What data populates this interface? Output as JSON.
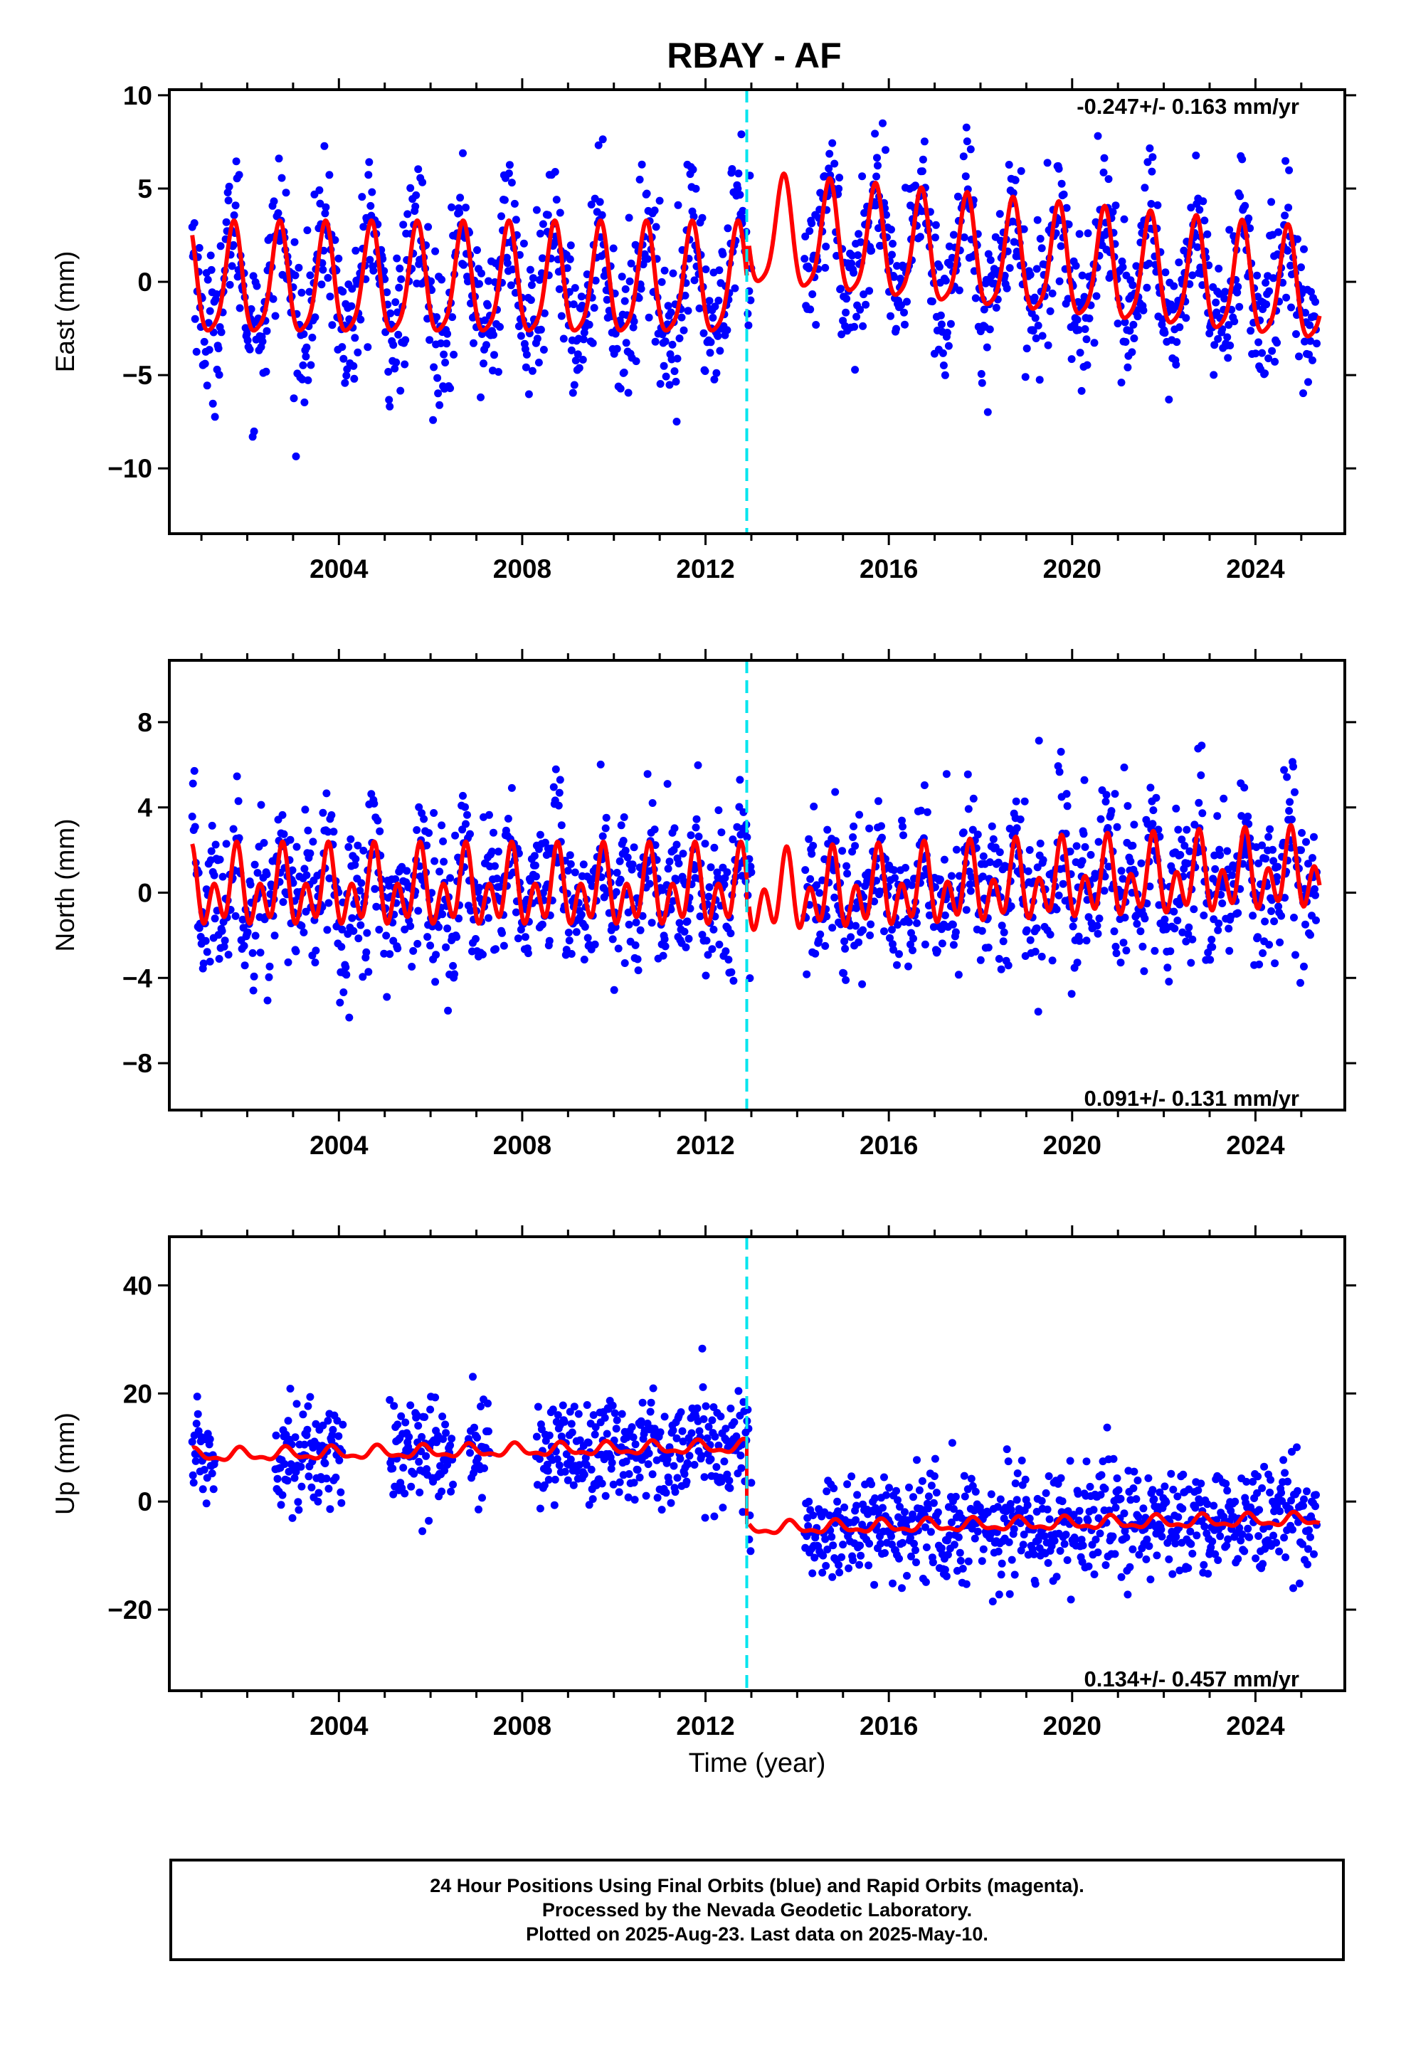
{
  "title": "RBAY - AF",
  "xlabel": "Time (year)",
  "colors": {
    "final_orbits": "#0000ff",
    "model": "#ff0000",
    "event_line": "#00e5ee"
  },
  "caption": {
    "line1": "24 Hour Positions Using Final Orbits (blue) and Rapid Orbits (magenta).",
    "line2": "Processed by the Nevada Geodetic Laboratory.",
    "line3": "Plotted on 2025-Aug-23. Last data on 2025-May-10."
  },
  "chart_data": [
    {
      "type": "scatter",
      "component": "east",
      "ylabel": "East (mm)",
      "rate_label": "-0.247+/- 0.163 mm/yr",
      "rate_position": "top-right",
      "xlim": [
        2000.3,
        2025.95
      ],
      "ylim": [
        -13.5,
        10.3
      ],
      "xticks": [
        2004,
        2008,
        2012,
        2016,
        2020,
        2024
      ],
      "yticks": [
        -10,
        -5,
        0,
        5,
        10
      ],
      "event_line_x": 2012.9,
      "data_span": [
        2000.8,
        2025.35
      ],
      "gaps": [
        [
          2013.0,
          2014.15
        ]
      ],
      "segments": [
        {
          "start": 2000.8,
          "end": 2012.9,
          "offset": -0.2,
          "trend": 0.0
        },
        {
          "start": 2012.95,
          "end": 2025.4,
          "offset": 2.5,
          "trend": -0.247
        }
      ],
      "seasonal": {
        "annual_amp": 2.9,
        "annual_phase": 0.45,
        "semiannual_amp": 0.6,
        "semiannual_phase": 0.1
      },
      "scatter_sd": 2.0,
      "series": [
        {
          "name": "Final Orbits",
          "kind": "points"
        },
        {
          "name": "Model",
          "kind": "line"
        }
      ]
    },
    {
      "type": "scatter",
      "component": "north",
      "ylabel": "North (mm)",
      "rate_label": "0.091+/- 0.131 mm/yr",
      "rate_position": "bottom-right",
      "xlim": [
        2000.3,
        2025.95
      ],
      "ylim": [
        -10.2,
        10.9
      ],
      "xticks": [
        2004,
        2008,
        2012,
        2016,
        2020,
        2024
      ],
      "yticks": [
        -8,
        -4,
        0,
        4,
        8
      ],
      "event_line_x": 2012.9,
      "data_span": [
        2000.8,
        2025.35
      ],
      "gaps": [
        [
          2013.0,
          2014.15
        ]
      ],
      "segments": [
        {
          "start": 2000.8,
          "end": 2012.9,
          "offset": 0.1,
          "trend": 0.0
        },
        {
          "start": 2012.95,
          "end": 2025.4,
          "offset": -0.2,
          "trend": 0.091
        }
      ],
      "seasonal": {
        "annual_amp": 1.0,
        "annual_phase": 0.5,
        "semiannual_amp": 1.3,
        "semiannual_phase": 0.15
      },
      "scatter_sd": 1.7,
      "series": [
        {
          "name": "Final Orbits",
          "kind": "points"
        },
        {
          "name": "Model",
          "kind": "line"
        }
      ]
    },
    {
      "type": "scatter",
      "component": "up",
      "ylabel": "Up (mm)",
      "rate_label": "0.134+/- 0.457 mm/yr",
      "rate_position": "bottom-right",
      "xlim": [
        2000.3,
        2025.95
      ],
      "ylim": [
        -35,
        49
      ],
      "xticks": [
        2004,
        2008,
        2012,
        2016,
        2020,
        2024
      ],
      "yticks": [
        -20,
        0,
        20,
        40
      ],
      "event_line_x": 2012.9,
      "data_span": [
        2000.8,
        2025.35
      ],
      "gaps": [
        [
          2001.3,
          2002.6
        ],
        [
          2004.1,
          2005.1
        ],
        [
          2006.5,
          2006.8
        ],
        [
          2007.3,
          2008.3
        ],
        [
          2013.0,
          2014.15
        ]
      ],
      "segments": [
        {
          "start": 2000.8,
          "end": 2012.9,
          "offset": 8.5,
          "trend": 0.134
        },
        {
          "start": 2012.95,
          "end": 2025.4,
          "offset": -5.0,
          "trend": 0.134
        }
      ],
      "seasonal": {
        "annual_amp": 1.0,
        "annual_phase": 0.6,
        "semiannual_amp": 0.5,
        "semiannual_phase": 0.2
      },
      "scatter_sd": 5.0,
      "series": [
        {
          "name": "Final Orbits",
          "kind": "points"
        },
        {
          "name": "Model",
          "kind": "line"
        }
      ]
    }
  ]
}
